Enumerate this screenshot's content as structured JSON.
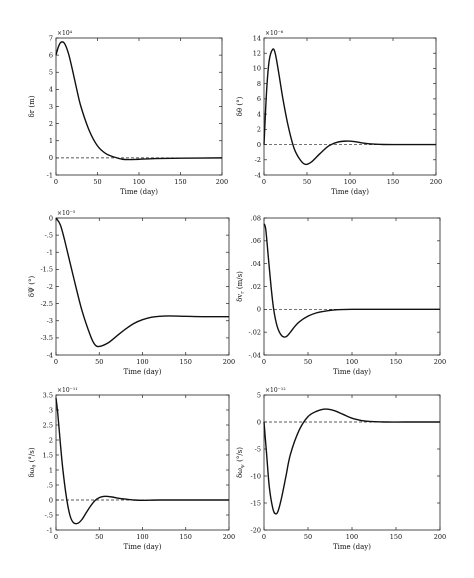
{
  "chart_data": [
    {
      "type": "line",
      "xlabel": "Time (day)",
      "ylabel": "δr (m)",
      "multiplier": "×10⁴",
      "xlim": [
        0,
        200
      ],
      "ylim": [
        -1,
        7
      ],
      "xticks": [
        0,
        50,
        100,
        150,
        200
      ],
      "yticks": [
        -1,
        0,
        1,
        2,
        3,
        4,
        5,
        6,
        7
      ],
      "grid": false,
      "reference_line": 0,
      "series": [
        {
          "x": [
            0,
            3,
            6,
            10,
            15,
            20,
            25,
            30,
            40,
            50,
            60,
            70,
            80,
            90,
            100,
            120,
            150,
            200
          ],
          "y": [
            6.0,
            6.5,
            6.75,
            6.7,
            6.1,
            5.1,
            4.0,
            3.0,
            1.6,
            0.7,
            0.25,
            0.05,
            -0.08,
            -0.1,
            -0.08,
            -0.04,
            -0.02,
            0.0
          ]
        }
      ]
    },
    {
      "type": "line",
      "xlabel": "Time (day)",
      "ylabel": "δθ (°)",
      "multiplier": "×10⁻⁶",
      "xlim": [
        0,
        200
      ],
      "ylim": [
        -4,
        14
      ],
      "xticks": [
        0,
        50,
        100,
        150,
        200
      ],
      "yticks": [
        -4,
        -2,
        0,
        2,
        4,
        6,
        8,
        10,
        12,
        14
      ],
      "grid": false,
      "reference_line": 0,
      "series": [
        {
          "x": [
            0,
            3,
            6,
            10,
            13,
            17,
            22,
            28,
            35,
            42,
            48,
            55,
            65,
            75,
            85,
            95,
            105,
            115,
            130,
            150,
            200
          ],
          "y": [
            0.0,
            7.0,
            11.0,
            12.5,
            12.0,
            9.5,
            6.0,
            2.5,
            -0.5,
            -2.0,
            -2.6,
            -2.3,
            -1.2,
            -0.2,
            0.3,
            0.45,
            0.4,
            0.2,
            0.05,
            0.0,
            0.0
          ]
        }
      ]
    },
    {
      "type": "line",
      "xlabel": "Time (day)",
      "ylabel": "δΨ (°)",
      "multiplier": "×10⁻⁵",
      "xlim": [
        0,
        200
      ],
      "ylim": [
        -4,
        0
      ],
      "xticks": [
        0,
        50,
        100,
        150,
        200
      ],
      "yticks": [
        -4,
        -3.5,
        -3,
        -2.5,
        -2,
        -1.5,
        -1,
        -0.5,
        0
      ],
      "grid": false,
      "reference_line": null,
      "series": [
        {
          "x": [
            0,
            5,
            10,
            20,
            30,
            40,
            45,
            50,
            60,
            70,
            80,
            90,
            100,
            110,
            120,
            130,
            150,
            170,
            200
          ],
          "y": [
            0.0,
            -0.2,
            -0.65,
            -1.7,
            -2.7,
            -3.45,
            -3.7,
            -3.75,
            -3.65,
            -3.45,
            -3.25,
            -3.08,
            -2.97,
            -2.9,
            -2.87,
            -2.86,
            -2.87,
            -2.88,
            -2.88
          ]
        }
      ]
    },
    {
      "type": "line",
      "xlabel": "Time (day)",
      "ylabel": "δv_r (m/s)",
      "multiplier": "",
      "xlim": [
        0,
        200
      ],
      "ylim": [
        -0.04,
        0.08
      ],
      "xticks": [
        0,
        50,
        100,
        150,
        200
      ],
      "yticks": [
        -0.04,
        -0.02,
        0,
        0.02,
        0.04,
        0.06,
        0.08
      ],
      "grid": false,
      "reference_line": 0,
      "series": [
        {
          "x": [
            0,
            2,
            5,
            8,
            11,
            15,
            20,
            25,
            30,
            35,
            40,
            50,
            60,
            70,
            80,
            100,
            120,
            150,
            200
          ],
          "y": [
            0.075,
            0.07,
            0.045,
            0.02,
            0.0,
            -0.015,
            -0.023,
            -0.024,
            -0.02,
            -0.015,
            -0.011,
            -0.006,
            -0.003,
            -0.0015,
            -0.0005,
            0.0,
            0.0,
            0.0,
            0.0
          ]
        }
      ]
    },
    {
      "type": "line",
      "xlabel": "Time (day)",
      "ylabel": "δω_θ (°/s)",
      "multiplier": "×10⁻¹¹",
      "xlim": [
        0,
        200
      ],
      "ylim": [
        -1,
        3.5
      ],
      "xticks": [
        0,
        50,
        100,
        150,
        200
      ],
      "yticks": [
        -1,
        -0.5,
        0,
        0.5,
        1,
        1.5,
        2,
        2.5,
        3,
        3.5
      ],
      "grid": false,
      "reference_line": 0,
      "series": [
        {
          "x": [
            0,
            2,
            5,
            8,
            12,
            16,
            20,
            25,
            30,
            35,
            40,
            45,
            50,
            55,
            60,
            65,
            70,
            80,
            90,
            100,
            120,
            150,
            200
          ],
          "y": [
            3.4,
            2.9,
            1.9,
            1.0,
            0.1,
            -0.5,
            -0.75,
            -0.78,
            -0.65,
            -0.42,
            -0.2,
            -0.02,
            0.08,
            0.12,
            0.12,
            0.1,
            0.07,
            0.03,
            0.0,
            -0.01,
            0.0,
            0.0,
            0.0
          ]
        }
      ]
    },
    {
      "type": "line",
      "xlabel": "Time (day)",
      "ylabel": "δω_ψ (°/s)",
      "multiplier": "×10⁻¹²",
      "xlim": [
        0,
        200
      ],
      "ylim": [
        -20,
        5
      ],
      "xticks": [
        0,
        50,
        100,
        150,
        200
      ],
      "yticks": [
        -20,
        -15,
        -10,
        -5,
        0,
        5
      ],
      "grid": false,
      "reference_line": 0,
      "series": [
        {
          "x": [
            0,
            3,
            6,
            10,
            13,
            16,
            20,
            25,
            30,
            40,
            50,
            60,
            70,
            80,
            90,
            100,
            110,
            120,
            140,
            160,
            200
          ],
          "y": [
            0.0,
            -6.0,
            -12.0,
            -16.0,
            -17.0,
            -16.5,
            -14.0,
            -10.0,
            -6.0,
            -1.5,
            1.0,
            2.0,
            2.4,
            2.1,
            1.4,
            0.7,
            0.3,
            0.1,
            0.0,
            0.0,
            0.0
          ]
        }
      ]
    }
  ]
}
